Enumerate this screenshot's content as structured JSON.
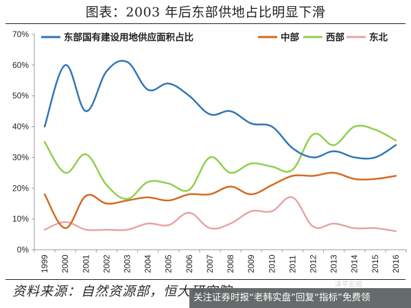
{
  "title": "图表：2003 年后东部供地占比明显下滑",
  "source": "资料来源：自然资源部，恒大研究院",
  "watermark": "泽平宏观",
  "banner": "关注证券时报“老韩实盘”回复“指标”免费领",
  "colors": {
    "east": "#2F75B5",
    "central": "#D4691E",
    "west": "#8FCF4A",
    "northeast": "#E8A3A3",
    "axis": "#999999",
    "text": "#222222"
  },
  "chart_data": {
    "type": "line",
    "x": [
      "1999",
      "2000",
      "2001",
      "2002",
      "2003",
      "2004",
      "2005",
      "2006",
      "2007",
      "2008",
      "2009",
      "2010",
      "2011",
      "2012",
      "2013",
      "2014",
      "2015",
      "2016"
    ],
    "y_ticks": [
      "0%",
      "10%",
      "20%",
      "30%",
      "40%",
      "50%",
      "60%",
      "70%"
    ],
    "ylim": [
      0,
      70
    ],
    "legend_position": "top",
    "grid": false,
    "series": [
      {
        "name": "东部国有建设用地供应面积占比",
        "color_key": "east",
        "values": [
          40,
          60,
          45,
          58,
          61,
          52,
          54,
          50,
          44,
          45,
          41,
          40,
          33,
          30,
          32,
          30,
          30,
          34
        ]
      },
      {
        "name": "中部",
        "color_key": "central",
        "values": [
          18,
          7,
          17.5,
          15,
          16,
          17,
          16,
          18,
          18,
          20.5,
          18,
          21,
          24,
          24,
          25,
          23,
          23,
          24
        ]
      },
      {
        "name": "西部",
        "color_key": "west",
        "values": [
          35,
          25,
          31,
          21,
          16.5,
          22,
          21.5,
          19.5,
          30,
          25,
          28,
          27,
          26,
          37.5,
          34,
          40,
          39,
          35.5
        ]
      },
      {
        "name": "东北",
        "color_key": "northeast",
        "values": [
          6.5,
          9,
          6.5,
          6.5,
          6.5,
          8.5,
          8,
          12,
          7,
          8.5,
          12.5,
          12.5,
          17,
          7.5,
          8.5,
          7,
          7,
          6
        ]
      }
    ]
  }
}
